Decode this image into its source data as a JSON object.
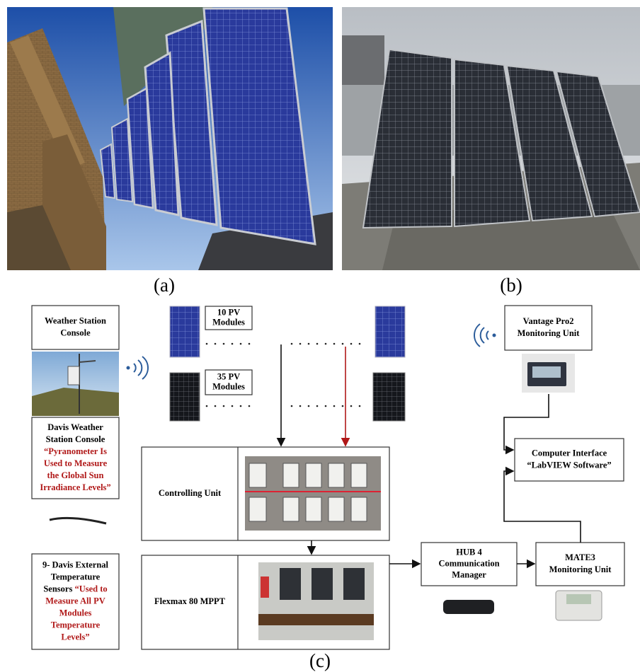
{
  "figure": {
    "captions": {
      "a": "(a)",
      "b": "(b)",
      "c": "(c)"
    },
    "boxes": {
      "weather_station_console": {
        "lines": [
          [
            {
              "text": "Weather Station",
              "color": "#000000"
            }
          ],
          [
            {
              "text": "Console",
              "color": "#000000"
            }
          ]
        ]
      },
      "pv_10": {
        "lines": [
          [
            {
              "text": "10 PV",
              "color": "#000000"
            }
          ],
          [
            {
              "text": "Modules",
              "color": "#000000"
            }
          ]
        ]
      },
      "pv_35": {
        "lines": [
          [
            {
              "text": "35 PV",
              "color": "#000000"
            }
          ],
          [
            {
              "text": "Modules",
              "color": "#000000"
            }
          ]
        ]
      },
      "vantage": {
        "lines": [
          [
            {
              "text": "Vantage Pro2",
              "color": "#000000"
            }
          ],
          [
            {
              "text": "Monitoring Unit",
              "color": "#000000"
            }
          ]
        ]
      },
      "davis_console": {
        "lines": [
          [
            {
              "text": "Davis Weather",
              "color": "#000000"
            }
          ],
          [
            {
              "text": "Station Console",
              "color": "#000000"
            }
          ],
          [
            {
              "text": "“Pyranometer Is",
              "color": "#b01818"
            }
          ],
          [
            {
              "text": "Used to Measure",
              "color": "#b01818"
            }
          ],
          [
            {
              "text": "the Global Sun",
              "color": "#b01818"
            }
          ],
          [
            {
              "text": "Irradiance Levels”",
              "color": "#b01818"
            }
          ]
        ]
      },
      "computer_interface": {
        "lines": [
          [
            {
              "text": "Computer Interface",
              "color": "#000000"
            }
          ],
          [
            {
              "text": "“LabVIEW Software”",
              "color": "#000000"
            }
          ]
        ]
      },
      "controlling_unit": {
        "lines": [
          [
            {
              "text": "Controlling Unit",
              "color": "#000000"
            }
          ]
        ]
      },
      "temperature_sensors": {
        "lines": [
          [
            {
              "text": "9- Davis External",
              "color": "#000000"
            }
          ],
          [
            {
              "text": "Temperature",
              "color": "#000000"
            }
          ],
          [
            {
              "text": "Sensors ",
              "color": "#000000"
            },
            {
              "text": "“Used to",
              "color": "#b01818"
            }
          ],
          [
            {
              "text": "Measure All PV",
              "color": "#b01818"
            }
          ],
          [
            {
              "text": "Modules",
              "color": "#b01818"
            }
          ],
          [
            {
              "text": "Temperature",
              "color": "#b01818"
            }
          ],
          [
            {
              "text": "Levels”",
              "color": "#b01818"
            }
          ]
        ]
      },
      "flexmax": {
        "lines": [
          [
            {
              "text": "Flexmax 80 MPPT",
              "color": "#000000"
            }
          ]
        ]
      },
      "hub4": {
        "lines": [
          [
            {
              "text": "HUB 4",
              "color": "#000000"
            }
          ],
          [
            {
              "text": "Communication",
              "color": "#000000"
            }
          ],
          [
            {
              "text": "Manager",
              "color": "#000000"
            }
          ]
        ]
      },
      "mate3": {
        "lines": [
          [
            {
              "text": "MATE3",
              "color": "#000000"
            }
          ],
          [
            {
              "text": "Monitoring Unit",
              "color": "#000000"
            }
          ]
        ]
      }
    }
  }
}
